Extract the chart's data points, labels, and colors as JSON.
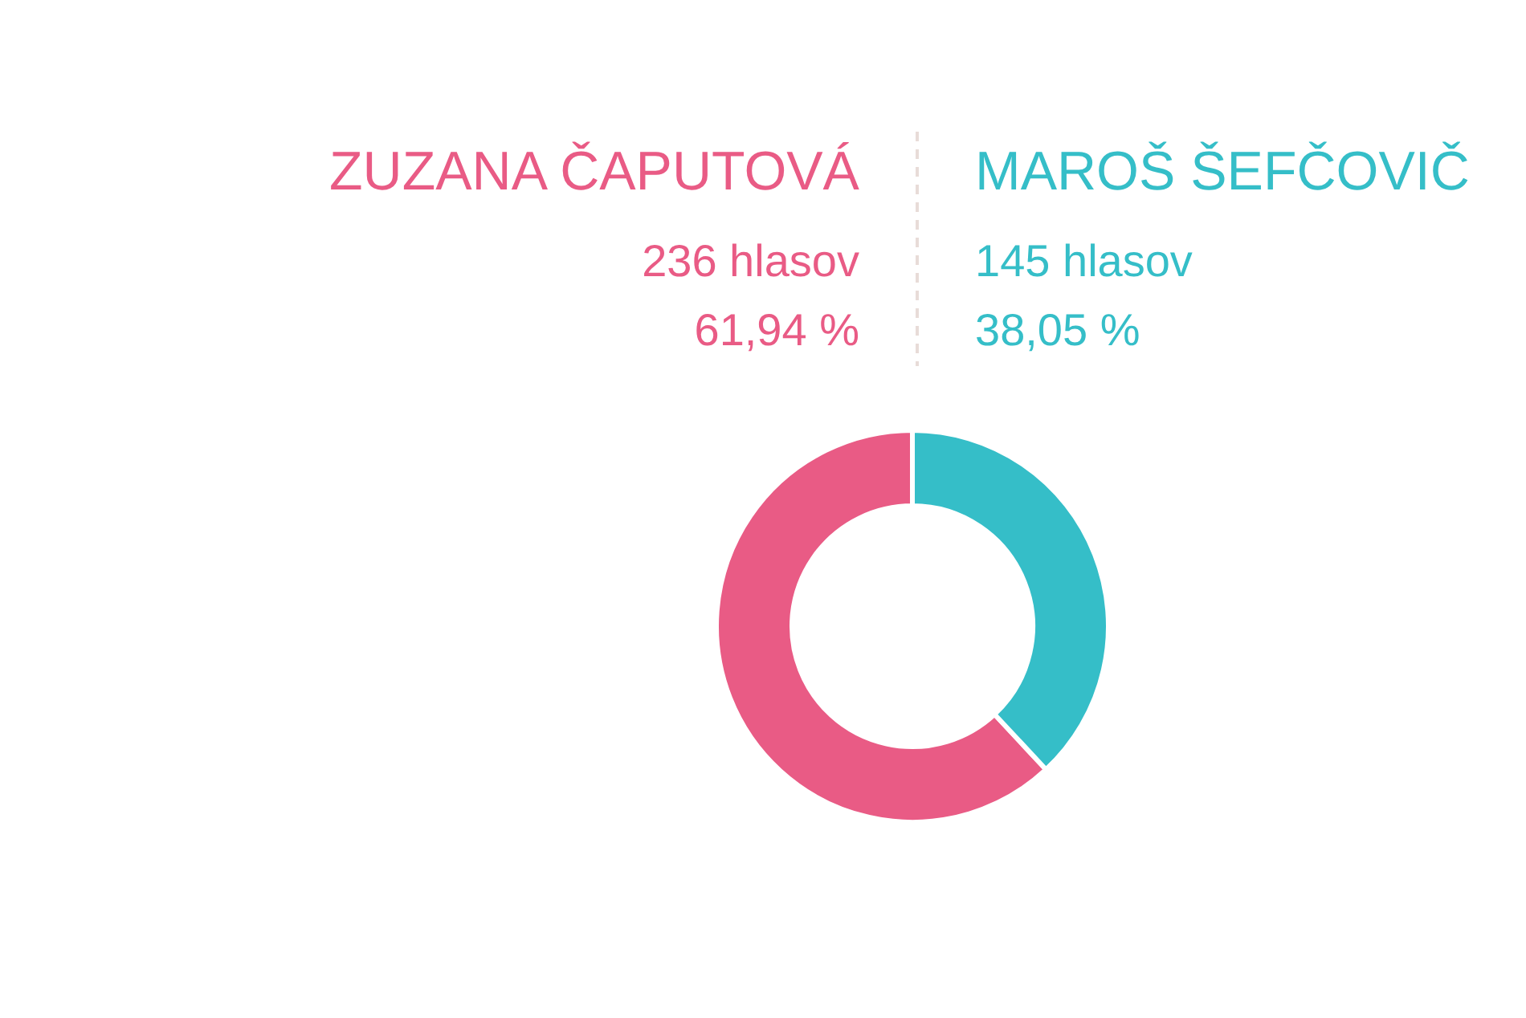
{
  "chart_data": {
    "type": "donut",
    "categories": [
      "ZUZANA ČAPUTOVÁ",
      "MAROŠ ŠEFČOVIČ"
    ],
    "values": [
      236,
      145
    ],
    "colors": [
      "#e95b85",
      "#35bec8"
    ],
    "value_labels": [
      "236 hlasov",
      "145 hlasov"
    ],
    "annotations": [
      "61,94 %",
      "38,05 %"
    ]
  }
}
